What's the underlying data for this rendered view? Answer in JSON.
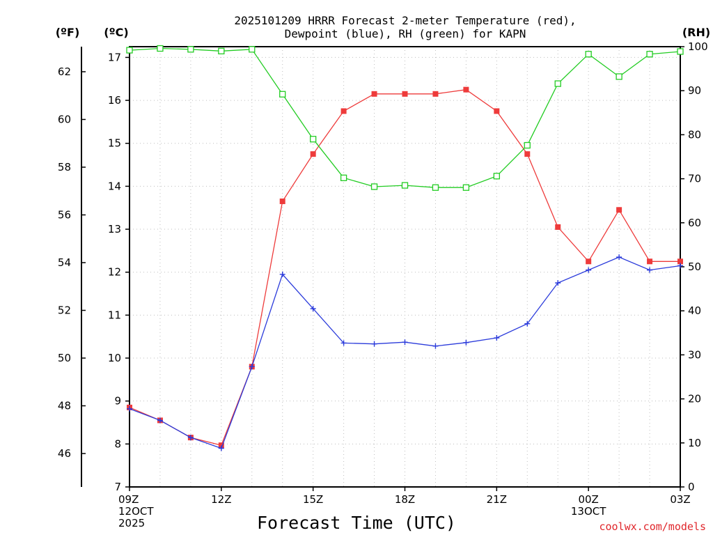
{
  "chart_data": {
    "type": "line",
    "title_lines": [
      "2025101209 HRRR Forecast 2-meter Temperature (red),",
      "Dewpoint (blue), RH (green) for KAPN"
    ],
    "xlabel": "Forecast Time (UTC)",
    "credit": "coolwx.com/models",
    "unit_labels": {
      "fahrenheit": "(ºF)",
      "celsius": "(ºC)",
      "rh": "(RH)"
    },
    "x_hours": [
      0,
      1,
      2,
      3,
      4,
      5,
      6,
      7,
      8,
      9,
      10,
      11,
      12,
      13,
      14,
      15,
      16,
      17,
      18
    ],
    "x_ticks": [
      {
        "hour": 0,
        "lines": [
          "09Z",
          "12OCT",
          "2025"
        ]
      },
      {
        "hour": 3,
        "lines": [
          "12Z"
        ]
      },
      {
        "hour": 6,
        "lines": [
          "15Z"
        ]
      },
      {
        "hour": 9,
        "lines": [
          "18Z"
        ]
      },
      {
        "hour": 12,
        "lines": [
          "21Z"
        ]
      },
      {
        "hour": 15,
        "lines": [
          "00Z",
          "13OCT"
        ]
      },
      {
        "hour": 18,
        "lines": [
          "03Z"
        ]
      }
    ],
    "y_celsius": {
      "min": 7,
      "max": 17.25,
      "ticks": [
        "7",
        "8",
        "9",
        "10",
        "11",
        "12",
        "13",
        "14",
        "15",
        "16",
        "17"
      ]
    },
    "y_fahrenheit": {
      "ticks": [
        "46",
        "48",
        "50",
        "52",
        "54",
        "56",
        "58",
        "60",
        "62"
      ]
    },
    "y_rh": {
      "min": 0,
      "max": 100,
      "ticks": [
        "0",
        "10",
        "20",
        "30",
        "40",
        "50",
        "60",
        "70",
        "80",
        "90",
        "100"
      ]
    },
    "series": [
      {
        "name": "Temperature",
        "axis": "celsius",
        "color": "#ee3b3b",
        "marker": "filled-square",
        "values": [
          8.85,
          8.55,
          8.15,
          7.97,
          9.8,
          13.65,
          14.75,
          15.75,
          16.15,
          16.15,
          16.15,
          16.25,
          15.75,
          14.75,
          13.05,
          12.25,
          13.45,
          12.25,
          12.25
        ]
      },
      {
        "name": "Dewpoint",
        "axis": "celsius",
        "color": "#2b3bdb",
        "marker": "plus",
        "values": [
          8.82,
          8.55,
          8.15,
          7.9,
          9.8,
          11.95,
          11.15,
          10.35,
          10.33,
          10.37,
          10.28,
          10.36,
          10.47,
          10.8,
          11.75,
          12.05,
          12.35,
          12.05,
          12.15
        ]
      },
      {
        "name": "RH",
        "axis": "rh",
        "color": "#22cc22",
        "marker": "open-square",
        "values": [
          99.2,
          99.6,
          99.4,
          99.0,
          99.4,
          89.2,
          79.0,
          70.2,
          68.2,
          68.5,
          68.0,
          68.0,
          70.6,
          77.6,
          91.6,
          98.3,
          93.2,
          98.3,
          98.9
        ]
      }
    ]
  }
}
